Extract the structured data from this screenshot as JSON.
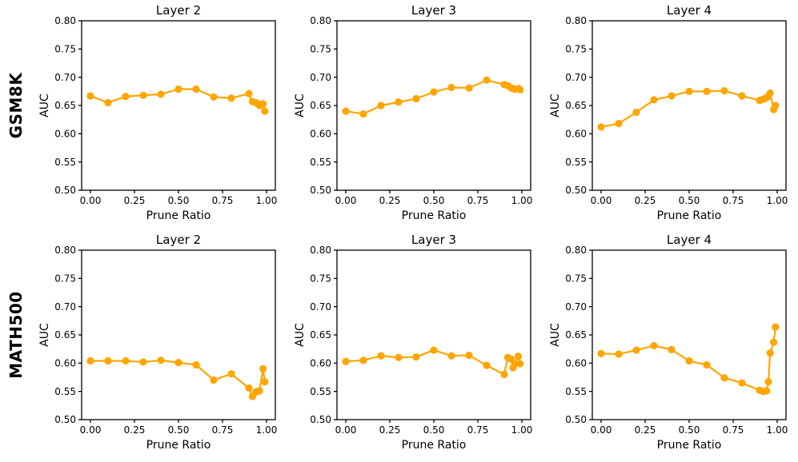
{
  "figure": {
    "background": "#ffffff",
    "rows": [
      {
        "label": "GSM8K"
      },
      {
        "label": "MATH500"
      }
    ]
  },
  "colors": {
    "series": "#FFA500",
    "axis": "#000000",
    "text": "#000000"
  },
  "chart_defaults": {
    "type": "line",
    "xlabel": "Prune Ratio",
    "ylabel": "AUC",
    "xlim": [
      -0.05,
      1.05
    ],
    "ylim": [
      0.5,
      0.8
    ],
    "x_ticks": [
      "0.00",
      "0.25",
      "0.50",
      "0.75",
      "1.00"
    ],
    "y_ticks": [
      "0.50",
      "0.55",
      "0.60",
      "0.65",
      "0.70",
      "0.75",
      "0.80"
    ],
    "grid": false,
    "legend": "none",
    "line_color": "#FFA500",
    "marker": "circle",
    "x": [
      0.0,
      0.1,
      0.2,
      0.3,
      0.4,
      0.5,
      0.6,
      0.7,
      0.8,
      0.9,
      0.92,
      0.94,
      0.95,
      0.96,
      0.98,
      0.99
    ]
  },
  "chart_data": [
    {
      "row": "GSM8K",
      "title": "Layer 2",
      "y": [
        0.667,
        0.655,
        0.666,
        0.668,
        0.67,
        0.679,
        0.679,
        0.665,
        0.663,
        0.671,
        0.657,
        0.655,
        0.653,
        0.65,
        0.653,
        0.64
      ]
    },
    {
      "row": "GSM8K",
      "title": "Layer 3",
      "y": [
        0.64,
        0.635,
        0.65,
        0.656,
        0.662,
        0.674,
        0.682,
        0.681,
        0.695,
        0.687,
        0.685,
        0.681,
        0.68,
        0.679,
        0.68,
        0.678
      ]
    },
    {
      "row": "GSM8K",
      "title": "Layer 4",
      "y": [
        0.612,
        0.618,
        0.638,
        0.66,
        0.667,
        0.675,
        0.675,
        0.676,
        0.667,
        0.659,
        0.661,
        0.664,
        0.666,
        0.672,
        0.643,
        0.65
      ]
    },
    {
      "row": "MATH500",
      "title": "Layer 2",
      "y": [
        0.604,
        0.604,
        0.604,
        0.602,
        0.605,
        0.601,
        0.597,
        0.57,
        0.581,
        0.556,
        0.541,
        0.549,
        0.55,
        0.551,
        0.59,
        0.567
      ]
    },
    {
      "row": "MATH500",
      "title": "Layer 3",
      "y": [
        0.603,
        0.605,
        0.613,
        0.61,
        0.611,
        0.623,
        0.613,
        0.614,
        0.596,
        0.58,
        0.61,
        0.607,
        0.592,
        0.598,
        0.612,
        0.599
      ]
    },
    {
      "row": "MATH500",
      "title": "Layer 4",
      "y": [
        0.617,
        0.616,
        0.623,
        0.631,
        0.624,
        0.604,
        0.597,
        0.574,
        0.565,
        0.552,
        0.55,
        0.551,
        0.567,
        0.618,
        0.637,
        0.664
      ]
    }
  ]
}
